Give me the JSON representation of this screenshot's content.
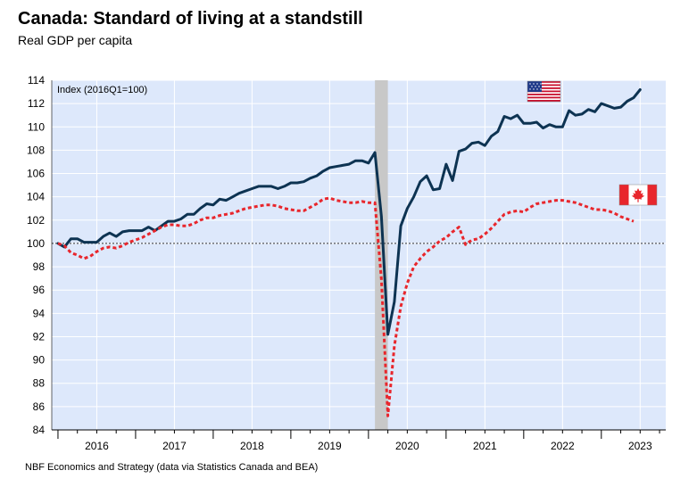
{
  "title": "Canada: Standard of living at a standstill",
  "subtitle": "Real GDP per capita",
  "source": "NBF Economics and Strategy (data via Statistics Canada and BEA)",
  "colors": {
    "plot_bg": "#dde8fb",
    "grid": "#ffffff",
    "us": "#0d3352",
    "canada": "#e8262c",
    "recession": "#c8c8c8",
    "baseline": "#333333"
  },
  "chart_data": {
    "type": "line",
    "title": "Canada: Standard of living at a standstill",
    "subtitle": "Real GDP per capita",
    "annotation": "Index (2016Q1=100)",
    "xlabel": "",
    "ylabel": "",
    "ylim": [
      84,
      114
    ],
    "yticks": [
      84,
      86,
      88,
      90,
      92,
      94,
      96,
      98,
      100,
      102,
      104,
      106,
      108,
      110,
      112,
      114
    ],
    "year_labels": [
      "2016",
      "2017",
      "2018",
      "2019",
      "2020",
      "2021",
      "2022",
      "2023"
    ],
    "grid": true,
    "baseline": 100,
    "shaded_period": {
      "start": "2020-02",
      "end": "2020-04",
      "label": ""
    },
    "legend": [
      {
        "series": "US",
        "icon": "us-flag-icon",
        "placement": "top-right"
      },
      {
        "series": "Canada",
        "icon": "canada-flag-icon",
        "placement": "right"
      }
    ],
    "series": [
      {
        "key": "us",
        "style": "solid",
        "start": "2016-01",
        "frequency": "monthly",
        "values": [
          100,
          99.7,
          100.4,
          100.4,
          100.1,
          100.1,
          100.1,
          100.6,
          100.9,
          100.6,
          101,
          101.1,
          101.1,
          101.1,
          101.4,
          101.1,
          101.5,
          101.9,
          101.9,
          102.1,
          102.5,
          102.5,
          103,
          103.4,
          103.3,
          103.8,
          103.7,
          104,
          104.3,
          104.5,
          104.7,
          104.9,
          104.9,
          104.9,
          104.7,
          104.9,
          105.2,
          105.2,
          105.3,
          105.6,
          105.8,
          106.2,
          106.5,
          106.6,
          106.7,
          106.8,
          107.1,
          107.1,
          106.9,
          107.8,
          102.3,
          92.2,
          95,
          101.5,
          103,
          104,
          105.3,
          105.8,
          104.6,
          104.7,
          106.8,
          105.4,
          107.9,
          108.1,
          108.6,
          108.7,
          108.4,
          109.2,
          109.6,
          110.9,
          110.7,
          111,
          110.3,
          110.3,
          110.4,
          109.9,
          110.2,
          110,
          110,
          111.4,
          111,
          111.1,
          111.5,
          111.3,
          112,
          111.8,
          111.6,
          111.7,
          112.2,
          112.5,
          113.2
        ]
      },
      {
        "key": "canada",
        "style": "dotted",
        "start": "2016-01",
        "frequency": "monthly",
        "values": [
          100,
          99.8,
          99.2,
          99,
          98.7,
          98.9,
          99.3,
          99.6,
          99.7,
          99.6,
          99.8,
          100.1,
          100.3,
          100.5,
          100.8,
          101.1,
          101.4,
          101.6,
          101.6,
          101.5,
          101.5,
          101.7,
          102,
          102.2,
          102.2,
          102.4,
          102.5,
          102.6,
          102.8,
          103,
          103.1,
          103.2,
          103.3,
          103.3,
          103.2,
          103,
          102.9,
          102.8,
          102.8,
          103.1,
          103.4,
          103.8,
          103.9,
          103.7,
          103.6,
          103.5,
          103.5,
          103.6,
          103.5,
          103.5,
          96.9,
          85.2,
          91.2,
          94.6,
          96.6,
          98,
          98.7,
          99.3,
          99.7,
          100.2,
          100.5,
          101,
          101.4,
          99.9,
          100.3,
          100.4,
          100.8,
          101.3,
          101.9,
          102.5,
          102.7,
          102.8,
          102.7,
          103.1,
          103.4,
          103.5,
          103.6,
          103.7,
          103.7,
          103.6,
          103.5,
          103.3,
          103.1,
          102.9,
          102.9,
          102.8,
          102.6,
          102.3,
          102.1,
          101.9
        ]
      }
    ]
  }
}
